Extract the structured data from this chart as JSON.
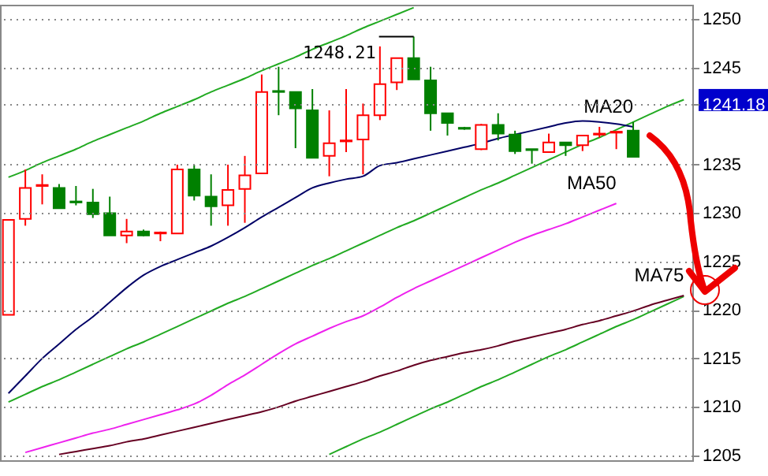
{
  "chart_data": {
    "type": "candlestick",
    "categories": [
      null,
      null,
      null,
      null,
      null,
      null,
      null,
      null,
      null,
      null,
      null,
      null,
      null,
      null,
      null,
      null,
      null,
      null,
      null,
      null,
      null,
      null,
      null,
      null,
      null,
      null,
      null,
      null,
      null,
      null,
      null,
      null,
      null,
      null,
      null,
      null,
      null,
      null,
      null,
      null,
      null
    ],
    "ohlc": [
      [
        1219.5,
        1229.3,
        1219.5,
        1229.3
      ],
      [
        1229.4,
        1234.5,
        1228.7,
        1232.6
      ],
      [
        1232.8,
        1234.0,
        1230.9,
        1232.9
      ],
      [
        1232.6,
        1233.0,
        1230.5,
        1230.5
      ],
      [
        1231.2,
        1232.8,
        1230.8,
        1231.1
      ],
      [
        1231.1,
        1232.5,
        1229.5,
        1229.9
      ],
      [
        1230.0,
        1231.7,
        1227.7,
        1227.7
      ],
      [
        1227.7,
        1229.4,
        1226.9,
        1228.1
      ],
      [
        1228.1,
        1228.3,
        1227.6,
        1227.7
      ],
      [
        1227.9,
        1228.1,
        1227.1,
        1228.0
      ],
      [
        1227.9,
        1235.0,
        1227.9,
        1234.5
      ],
      [
        1234.5,
        1235.0,
        1231.3,
        1231.8
      ],
      [
        1231.7,
        1234.0,
        1228.7,
        1230.7
      ],
      [
        1230.8,
        1235.0,
        1228.7,
        1232.4
      ],
      [
        1232.5,
        1235.9,
        1229.0,
        1233.9
      ],
      [
        1234.1,
        1244.3,
        1234.1,
        1242.5
      ],
      [
        1242.6,
        1245.1,
        1240.1,
        1242.5
      ],
      [
        1242.5,
        1242.5,
        1236.7,
        1240.8
      ],
      [
        1240.6,
        1242.8,
        1235.7,
        1235.7
      ],
      [
        1235.9,
        1240.6,
        1233.8,
        1237.2
      ],
      [
        1237.4,
        1242.8,
        1236.3,
        1237.5
      ],
      [
        1237.6,
        1241.3,
        1234.0,
        1240.1
      ],
      [
        1240.1,
        1247.2,
        1239.6,
        1243.3
      ],
      [
        1243.5,
        1246.0,
        1242.7,
        1246.0
      ],
      [
        1246.0,
        1248.21,
        1243.8,
        1243.8
      ],
      [
        1243.7,
        1245.1,
        1238.5,
        1240.3
      ],
      [
        1240.3,
        1240.3,
        1238.0,
        1239.3
      ],
      [
        1238.8,
        1238.9,
        1238.6,
        1238.7
      ],
      [
        1236.6,
        1239.2,
        1236.5,
        1239.1
      ],
      [
        1239.1,
        1240.3,
        1237.5,
        1238.2
      ],
      [
        1238.1,
        1238.5,
        1236.1,
        1236.4
      ],
      [
        1236.6,
        1236.6,
        1235.1,
        1236.5
      ],
      [
        1236.3,
        1238.2,
        1236.3,
        1237.3
      ],
      [
        1237.3,
        1237.3,
        1235.9,
        1237.0
      ],
      [
        1237.0,
        1238.0,
        1236.4,
        1238.0
      ],
      [
        1238.1,
        1238.9,
        1237.8,
        1238.2
      ],
      [
        1238.3,
        1238.4,
        1236.6,
        1238.4
      ],
      [
        1238.5,
        1239.4,
        1235.8,
        1235.8
      ],
      null,
      null,
      null
    ],
    "colors": [
      "#ff0000",
      "#ff0000",
      "#ff0000",
      "#008000",
      "#008000",
      "#008000",
      "#008000",
      "#ff0000",
      "#008000",
      "#ff0000",
      "#ff0000",
      "#008000",
      "#008000",
      "#ff0000",
      "#ff0000",
      "#ff0000",
      "#008000",
      "#008000",
      "#008000",
      "#ff0000",
      "#ff0000",
      "#ff0000",
      "#ff0000",
      "#ff0000",
      "#008000",
      "#008000",
      "#008000",
      "#008000",
      "#ff0000",
      "#008000",
      "#008000",
      "#008000",
      "#ff0000",
      "#008000",
      "#ff0000",
      "#ff0000",
      "#ff0000",
      "#008000",
      null,
      null,
      null
    ],
    "series": [
      {
        "name": "MA20",
        "type": "line",
        "color": "#000066",
        "values": [
          1211.4,
          1213.2,
          1215.0,
          1216.5,
          1218.0,
          1219.3,
          1220.8,
          1222.3,
          1223.6,
          1224.5,
          1225.2,
          1225.9,
          1226.6,
          1227.5,
          1228.5,
          1229.6,
          1230.6,
          1231.6,
          1232.6,
          1233.1,
          1233.5,
          1233.8,
          1234.9,
          1235.2,
          1235.6,
          1236.0,
          1236.4,
          1236.8,
          1237.2,
          1237.7,
          1238.1,
          1238.5,
          1238.9,
          1239.3,
          1239.5,
          1239.4,
          1239.2,
          1238.9,
          null,
          null,
          null
        ]
      },
      {
        "name": "MA50",
        "type": "line",
        "color": "#ee22ee",
        "values": [
          null,
          1205.3,
          1205.8,
          1206.3,
          1206.8,
          1207.3,
          1207.7,
          1208.2,
          1208.7,
          1209.2,
          1209.7,
          1210.3,
          1211.2,
          1212.3,
          1213.3,
          1214.4,
          1215.5,
          1216.5,
          1217.3,
          1218.1,
          1218.8,
          1219.4,
          1220.3,
          1221.3,
          1222.2,
          1223.0,
          1223.8,
          1224.6,
          1225.4,
          1226.2,
          1227.0,
          1227.7,
          1228.3,
          1228.9,
          1229.6,
          1230.3,
          1231.0,
          null,
          null,
          null,
          null
        ]
      },
      {
        "name": "MA75",
        "type": "line",
        "color": "#660022",
        "values": [
          null,
          null,
          null,
          1205.1,
          1205.4,
          1205.7,
          1206.0,
          1206.4,
          1206.7,
          1207.1,
          1207.5,
          1207.9,
          1208.3,
          1208.7,
          1209.1,
          1209.5,
          1210.0,
          1210.6,
          1211.1,
          1211.6,
          1212.1,
          1212.6,
          1213.2,
          1213.7,
          1214.3,
          1214.8,
          1215.2,
          1215.6,
          1215.9,
          1216.3,
          1216.8,
          1217.2,
          1217.6,
          1218.0,
          1218.5,
          1218.9,
          1219.4,
          1219.9,
          1220.5,
          1221.0,
          1221.5
        ]
      },
      {
        "type": "line",
        "color": "#22aa22",
        "values": [
          1233.7,
          1234.4,
          1235.2,
          1235.9,
          1236.6,
          1237.4,
          1238.1,
          1238.8,
          1239.5,
          1240.3,
          1241.0,
          1241.7,
          1242.5,
          1243.2,
          1243.9,
          1244.7,
          1245.4,
          1246.1,
          1246.9,
          1247.6,
          1248.3,
          1249.1,
          1249.8,
          1250.5,
          1251.2,
          null,
          null,
          null,
          null,
          null,
          null,
          null,
          null,
          null,
          null,
          null,
          null,
          null,
          null,
          null,
          null
        ]
      },
      {
        "type": "line",
        "color": "#22aa22",
        "values": [
          1210.5,
          1211.3,
          1212.1,
          1212.8,
          1213.6,
          1214.4,
          1215.2,
          1216.0,
          1216.7,
          1217.5,
          1218.3,
          1219.1,
          1219.9,
          1220.7,
          1221.4,
          1222.2,
          1223.0,
          1223.8,
          1224.6,
          1225.3,
          1226.1,
          1226.9,
          1227.7,
          1228.5,
          1229.2,
          1230.0,
          1230.8,
          1231.6,
          1232.4,
          1233.1,
          1233.9,
          1234.7,
          1235.5,
          1236.3,
          1237.1,
          1237.8,
          1238.6,
          1239.4,
          1240.2,
          1241.0,
          1241.7
        ]
      },
      {
        "type": "line",
        "color": "#22aa22",
        "values": [
          null,
          null,
          null,
          null,
          null,
          null,
          null,
          null,
          null,
          null,
          null,
          null,
          null,
          null,
          null,
          null,
          null,
          null,
          null,
          1205.1,
          1205.9,
          1206.7,
          1207.4,
          1208.2,
          1209.0,
          1209.8,
          1210.5,
          1211.3,
          1212.1,
          1212.8,
          1213.6,
          1214.4,
          1215.2,
          1215.9,
          1216.7,
          1217.5,
          1218.3,
          1219.0,
          1219.8,
          1220.6,
          1221.4
        ]
      }
    ],
    "ylim": [
      1204.5,
      1251.5
    ],
    "yticks": [
      1205,
      1210,
      1215,
      1220,
      1225,
      1230,
      1235,
      {
        "value": 1241.18,
        "label": "1241.18"
      },
      1245,
      1250
    ],
    "grid": "y",
    "tick_labels": "y",
    "annotations": [
      {
        "text": "1248.21",
        "y": 1248.21
      }
    ]
  }
}
